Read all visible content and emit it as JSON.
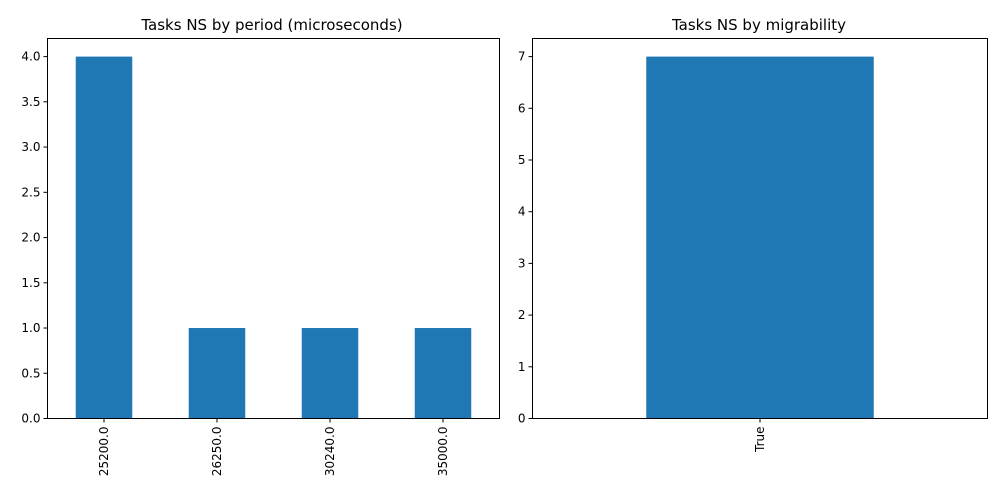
{
  "chart_data": [
    {
      "type": "bar",
      "title": "Tasks NS by period (microseconds)",
      "categories": [
        "25200.0",
        "26250.0",
        "30240.0",
        "35000.0"
      ],
      "values": [
        4,
        1,
        1,
        1
      ],
      "ylim": [
        0,
        4.2
      ],
      "yticks": [
        "0.0",
        "0.5",
        "1.0",
        "1.5",
        "2.0",
        "2.5",
        "3.0",
        "3.5",
        "4.0"
      ],
      "color": "#1f77b4",
      "grid": false
    },
    {
      "type": "bar",
      "title": "Tasks NS by migrability",
      "categories": [
        "True"
      ],
      "values": [
        7
      ],
      "ylim": [
        0,
        7.35
      ],
      "yticks": [
        "0",
        "1",
        "2",
        "3",
        "4",
        "5",
        "6",
        "7"
      ],
      "color": "#1f77b4",
      "grid": false
    }
  ]
}
